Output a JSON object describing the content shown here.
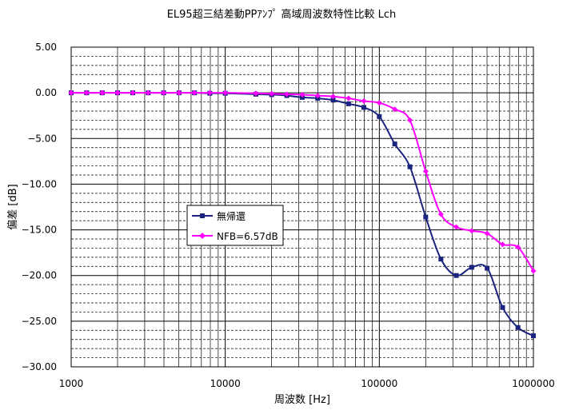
{
  "chart_data": {
    "type": "line",
    "title": "EL95超三結差動PPｱﾝﾌﾟ 高域周波数特性比較 Lch",
    "xlabel": "周波数 [Hz]",
    "ylabel": "偏差 [dB]",
    "x_scale": "log",
    "xlim": [
      1000,
      1000000
    ],
    "ylim": [
      -30,
      5
    ],
    "y_major_step": 5,
    "y_minor_step": 1,
    "x_tick_labels": [
      "1000",
      "10000",
      "100000",
      "1000000"
    ],
    "y_tick_labels": [
      "5.00",
      "0.00",
      "−5.00",
      "−10.00",
      "−15.00",
      "−20.00",
      "−25.00",
      "−30.00"
    ],
    "grid": true,
    "legend_position": "center-left",
    "series": [
      {
        "name": "無帰還",
        "color": "#1a237e",
        "marker": "square",
        "x": [
          1000,
          1260,
          1590,
          2000,
          2510,
          3160,
          3980,
          5010,
          6310,
          7940,
          10000,
          15800,
          20000,
          25100,
          31600,
          39800,
          50100,
          63100,
          79400,
          100000,
          126000,
          158000,
          200000,
          251000,
          316000,
          398000,
          501000,
          631000,
          794000,
          1000000
        ],
        "values": [
          0,
          0,
          0,
          0,
          0,
          0,
          0,
          0,
          0,
          -0.05,
          -0.05,
          -0.15,
          -0.2,
          -0.3,
          -0.5,
          -0.6,
          -0.8,
          -1.2,
          -1.6,
          -2.6,
          -5.6,
          -8.1,
          -13.6,
          -18.2,
          -20.0,
          -19.1,
          -19.2,
          -23.5,
          -25.7,
          -26.6
        ]
      },
      {
        "name": "NFB=6.57dB",
        "color": "#ff00ff",
        "marker": "diamond",
        "x": [
          1000,
          1260,
          1590,
          2000,
          2510,
          3160,
          3980,
          5010,
          6310,
          7940,
          10000,
          15800,
          20000,
          25100,
          31600,
          39800,
          50100,
          63100,
          79400,
          100000,
          126000,
          158000,
          200000,
          251000,
          316000,
          398000,
          501000,
          631000,
          794000,
          1000000
        ],
        "values": [
          0,
          0,
          0,
          0,
          0,
          0,
          0,
          0,
          0,
          0,
          0,
          -0.05,
          -0.1,
          -0.15,
          -0.2,
          -0.3,
          -0.4,
          -0.6,
          -0.9,
          -1.1,
          -1.8,
          -3.0,
          -8.6,
          -13.3,
          -14.7,
          -15.1,
          -15.4,
          -16.6,
          -16.9,
          -19.5
        ]
      }
    ]
  }
}
